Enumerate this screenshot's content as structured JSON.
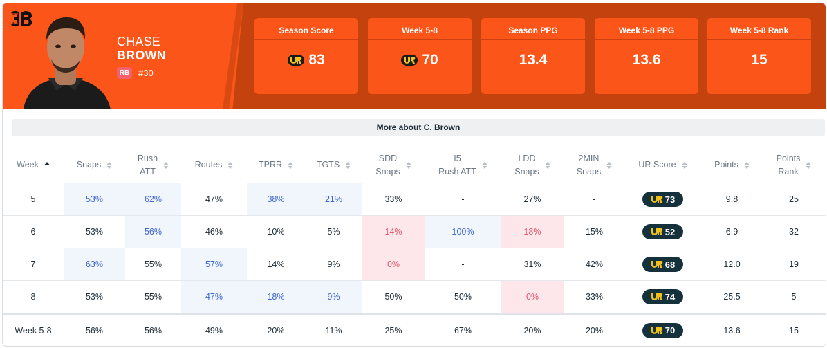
{
  "player": {
    "first_name": "CHASE",
    "last_name": "BROWN",
    "position": "RB",
    "jersey": "#30"
  },
  "colors": {
    "accent": "#fb5519",
    "header_dark": "#c4420d",
    "ur_badge": "#14313c",
    "ur_yellow": "#f2c21b",
    "highlight_blue_bg": "#f1f6fd",
    "highlight_blue_text": "#3f66cf",
    "highlight_red_bg": "#fde7ea",
    "highlight_red_text": "#e0556b"
  },
  "summary": [
    {
      "label": "Season Score",
      "value": "83",
      "icon": "ur-logo-icon"
    },
    {
      "label": "Week 5-8",
      "value": "70",
      "icon": "ur-logo-icon"
    },
    {
      "label": "Season PPG",
      "value": "13.4"
    },
    {
      "label": "Week 5-8 PPG",
      "value": "13.6"
    },
    {
      "label": "Week 5-8 Rank",
      "value": "15"
    }
  ],
  "more_button_label": "More about C. Brown",
  "columns": [
    {
      "l1": "Week",
      "l2": "",
      "sort": "asc"
    },
    {
      "l1": "Snaps",
      "l2": ""
    },
    {
      "l1": "Rush",
      "l2": "ATT"
    },
    {
      "l1": "Routes",
      "l2": ""
    },
    {
      "l1": "TPRR",
      "l2": ""
    },
    {
      "l1": "TGTS",
      "l2": ""
    },
    {
      "l1": "SDD",
      "l2": "Snaps"
    },
    {
      "l1": "I5",
      "l2": "Rush ATT"
    },
    {
      "l1": "LDD",
      "l2": "Snaps"
    },
    {
      "l1": "2MIN",
      "l2": "Snaps"
    },
    {
      "l1": "UR Score",
      "l2": ""
    },
    {
      "l1": "Points",
      "l2": ""
    },
    {
      "l1": "Points",
      "l2": "Rank"
    }
  ],
  "rows": [
    {
      "cells": [
        "5",
        "53%",
        "62%",
        "47%",
        "38%",
        "21%",
        "33%",
        "-",
        "27%",
        "-",
        "73",
        "9.8",
        "25"
      ],
      "hl": [
        "",
        "b",
        "b",
        "",
        "b",
        "b",
        "",
        "",
        "",
        "",
        "",
        "",
        ""
      ]
    },
    {
      "cells": [
        "6",
        "53%",
        "56%",
        "46%",
        "10%",
        "5%",
        "14%",
        "100%",
        "18%",
        "15%",
        "52",
        "6.9",
        "32"
      ],
      "hl": [
        "",
        "",
        "b",
        "",
        "",
        "",
        "r",
        "b",
        "r",
        "",
        "",
        "",
        ""
      ]
    },
    {
      "cells": [
        "7",
        "63%",
        "55%",
        "57%",
        "14%",
        "9%",
        "0%",
        "-",
        "31%",
        "42%",
        "68",
        "12.0",
        "19"
      ],
      "hl": [
        "",
        "b",
        "",
        "b",
        "",
        "",
        "r",
        "",
        "",
        "",
        "",
        "",
        ""
      ]
    },
    {
      "cells": [
        "8",
        "53%",
        "55%",
        "47%",
        "18%",
        "9%",
        "50%",
        "50%",
        "0%",
        "33%",
        "74",
        "25.5",
        "5"
      ],
      "hl": [
        "",
        "",
        "",
        "b",
        "b",
        "b",
        "",
        "",
        "r",
        "",
        "",
        "",
        ""
      ]
    }
  ],
  "total": {
    "cells": [
      "Week 5-8",
      "56%",
      "56%",
      "49%",
      "20%",
      "11%",
      "25%",
      "67%",
      "20%",
      "20%",
      "70",
      "13.6",
      "15"
    ]
  }
}
